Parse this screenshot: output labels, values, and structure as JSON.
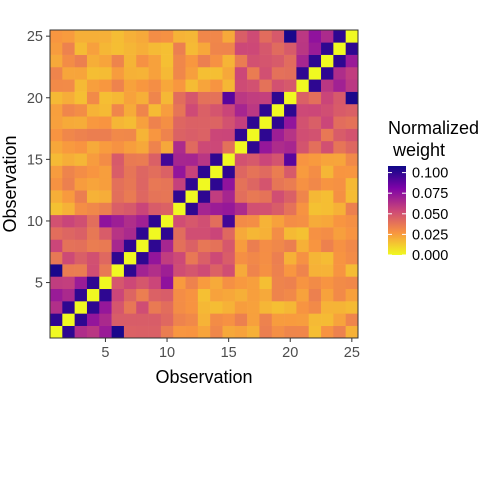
{
  "chart_data": {
    "type": "heatmap",
    "xlabel": "Observation",
    "ylabel": "Observation",
    "x_ticks": [
      5,
      10,
      15,
      20,
      25
    ],
    "y_ticks": [
      5,
      10,
      15,
      20,
      25
    ],
    "xlim": [
      0.5,
      25.5
    ],
    "ylim": [
      0.5,
      25.5
    ],
    "n": 25,
    "legend": {
      "title": "Normalized\n weight",
      "breaks": [
        0.1,
        0.075,
        0.05,
        0.025,
        0.0
      ],
      "break_labels": [
        "0.100",
        "0.075",
        "0.050",
        "0.025",
        "0.000"
      ],
      "limits": [
        0.0,
        0.108
      ],
      "position": "right"
    },
    "colorscale": [
      "#F0F921",
      "#F89540",
      "#CC4778",
      "#7E03A8",
      "#0D0887"
    ],
    "grid": false,
    "strong_pairs_value": 0.1,
    "strong_pairs": [
      [
        1,
        2
      ],
      [
        2,
        3
      ],
      [
        3,
        4
      ],
      [
        4,
        5
      ],
      [
        6,
        7
      ],
      [
        7,
        8
      ],
      [
        8,
        9
      ],
      [
        9,
        10
      ],
      [
        11,
        12
      ],
      [
        12,
        13
      ],
      [
        13,
        14
      ],
      [
        14,
        15
      ],
      [
        16,
        17
      ],
      [
        17,
        18
      ],
      [
        18,
        19
      ],
      [
        19,
        20
      ],
      [
        21,
        22
      ],
      [
        22,
        23
      ],
      [
        23,
        24
      ],
      [
        24,
        25
      ]
    ],
    "long_links": [
      [
        1,
        6,
        0.105
      ],
      [
        10,
        15,
        0.095
      ],
      [
        15,
        20,
        0.09
      ],
      [
        20,
        25,
        0.105
      ],
      [
        5,
        10,
        0.075
      ],
      [
        11,
        16,
        0.065
      ],
      [
        21,
        25,
        0.06
      ]
    ],
    "diagonal_value": 0.0,
    "within_group_value": 0.065,
    "between_group_value": 0.025,
    "adjacent_group_value": 0.045
  }
}
